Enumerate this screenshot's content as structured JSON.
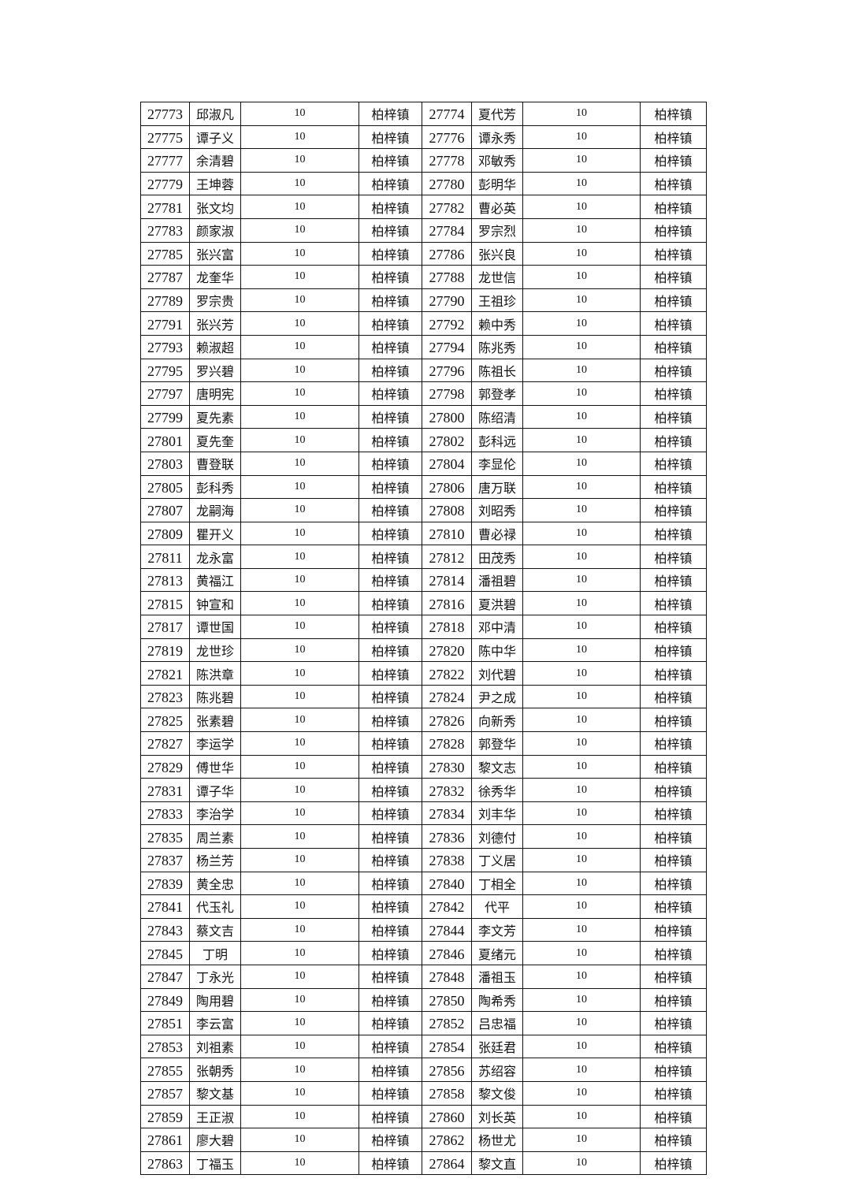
{
  "table": {
    "amount": "10",
    "town": "柏梓镇",
    "rows": [
      [
        [
          "27773",
          "邱淑凡"
        ],
        [
          "27774",
          "夏代芳"
        ]
      ],
      [
        [
          "27775",
          "谭子义"
        ],
        [
          "27776",
          "谭永秀"
        ]
      ],
      [
        [
          "27777",
          "余清碧"
        ],
        [
          "27778",
          "邓敏秀"
        ]
      ],
      [
        [
          "27779",
          "王坤蓉"
        ],
        [
          "27780",
          "彭明华"
        ]
      ],
      [
        [
          "27781",
          "张文均"
        ],
        [
          "27782",
          "曹必英"
        ]
      ],
      [
        [
          "27783",
          "颜家淑"
        ],
        [
          "27784",
          "罗宗烈"
        ]
      ],
      [
        [
          "27785",
          "张兴富"
        ],
        [
          "27786",
          "张兴良"
        ]
      ],
      [
        [
          "27787",
          "龙奎华"
        ],
        [
          "27788",
          "龙世信"
        ]
      ],
      [
        [
          "27789",
          "罗宗贵"
        ],
        [
          "27790",
          "王祖珍"
        ]
      ],
      [
        [
          "27791",
          "张兴芳"
        ],
        [
          "27792",
          "赖中秀"
        ]
      ],
      [
        [
          "27793",
          "赖淑超"
        ],
        [
          "27794",
          "陈兆秀"
        ]
      ],
      [
        [
          "27795",
          "罗兴碧"
        ],
        [
          "27796",
          "陈祖长"
        ]
      ],
      [
        [
          "27797",
          "唐明宪"
        ],
        [
          "27798",
          "郭登孝"
        ]
      ],
      [
        [
          "27799",
          "夏先素"
        ],
        [
          "27800",
          "陈绍清"
        ]
      ],
      [
        [
          "27801",
          "夏先奎"
        ],
        [
          "27802",
          "彭科远"
        ]
      ],
      [
        [
          "27803",
          "曹登联"
        ],
        [
          "27804",
          "李显伦"
        ]
      ],
      [
        [
          "27805",
          "彭科秀"
        ],
        [
          "27806",
          "唐万联"
        ]
      ],
      [
        [
          "27807",
          "龙嗣海"
        ],
        [
          "27808",
          "刘昭秀"
        ]
      ],
      [
        [
          "27809",
          "瞿开义"
        ],
        [
          "27810",
          "曹必禄"
        ]
      ],
      [
        [
          "27811",
          "龙永富"
        ],
        [
          "27812",
          "田茂秀"
        ]
      ],
      [
        [
          "27813",
          "黄福江"
        ],
        [
          "27814",
          "潘祖碧"
        ]
      ],
      [
        [
          "27815",
          "钟宣和"
        ],
        [
          "27816",
          "夏洪碧"
        ]
      ],
      [
        [
          "27817",
          "谭世国"
        ],
        [
          "27818",
          "邓中清"
        ]
      ],
      [
        [
          "27819",
          "龙世珍"
        ],
        [
          "27820",
          "陈中华"
        ]
      ],
      [
        [
          "27821",
          "陈洪章"
        ],
        [
          "27822",
          "刘代碧"
        ]
      ],
      [
        [
          "27823",
          "陈兆碧"
        ],
        [
          "27824",
          "尹之成"
        ]
      ],
      [
        [
          "27825",
          "张素碧"
        ],
        [
          "27826",
          "向新秀"
        ]
      ],
      [
        [
          "27827",
          "李运学"
        ],
        [
          "27828",
          "郭登华"
        ]
      ],
      [
        [
          "27829",
          "傅世华"
        ],
        [
          "27830",
          "黎文志"
        ]
      ],
      [
        [
          "27831",
          "谭子华"
        ],
        [
          "27832",
          "徐秀华"
        ]
      ],
      [
        [
          "27833",
          "李治学"
        ],
        [
          "27834",
          "刘丰华"
        ]
      ],
      [
        [
          "27835",
          "周兰素"
        ],
        [
          "27836",
          "刘德付"
        ]
      ],
      [
        [
          "27837",
          "杨兰芳"
        ],
        [
          "27838",
          "丁义居"
        ]
      ],
      [
        [
          "27839",
          "黄全忠"
        ],
        [
          "27840",
          "丁相全"
        ]
      ],
      [
        [
          "27841",
          "代玉礼"
        ],
        [
          "27842",
          "代平"
        ]
      ],
      [
        [
          "27843",
          "蔡文吉"
        ],
        [
          "27844",
          "李文芳"
        ]
      ],
      [
        [
          "27845",
          "丁明"
        ],
        [
          "27846",
          "夏绪元"
        ]
      ],
      [
        [
          "27847",
          "丁永光"
        ],
        [
          "27848",
          "潘祖玉"
        ]
      ],
      [
        [
          "27849",
          "陶用碧"
        ],
        [
          "27850",
          "陶希秀"
        ]
      ],
      [
        [
          "27851",
          "李云富"
        ],
        [
          "27852",
          "吕忠福"
        ]
      ],
      [
        [
          "27853",
          "刘祖素"
        ],
        [
          "27854",
          "张廷君"
        ]
      ],
      [
        [
          "27855",
          "张朝秀"
        ],
        [
          "27856",
          "苏绍容"
        ]
      ],
      [
        [
          "27857",
          "黎文基"
        ],
        [
          "27858",
          "黎文俊"
        ]
      ],
      [
        [
          "27859",
          "王正淑"
        ],
        [
          "27860",
          "刘长英"
        ]
      ],
      [
        [
          "27861",
          "廖大碧"
        ],
        [
          "27862",
          "杨世尤"
        ]
      ],
      [
        [
          "27863",
          "丁福玉"
        ],
        [
          "27864",
          "黎文直"
        ]
      ]
    ]
  }
}
